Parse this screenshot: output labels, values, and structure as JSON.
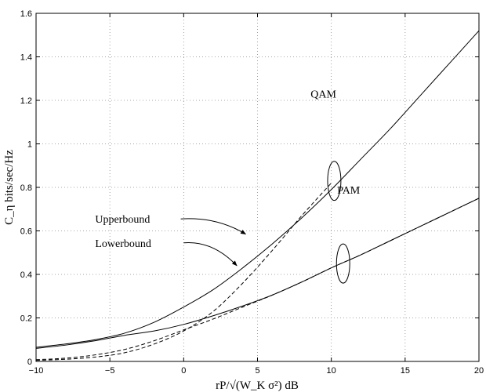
{
  "chart_data": {
    "type": "line",
    "xlabel": "rP/√(W_K σ²) dB",
    "ylabel": "C_η bits/sec/Hz",
    "xlim": [
      -10,
      20
    ],
    "ylim": [
      0,
      1.6
    ],
    "xticks": [
      "−10",
      "−5",
      "0",
      "5",
      "10",
      "15",
      "20"
    ],
    "yticks": [
      "0",
      "0.2",
      "0.4",
      "0.6",
      "0.8",
      "1",
      "1.2",
      "1.4",
      "1.6"
    ],
    "grid": true,
    "series": [
      {
        "name": "QAM Upperbound",
        "style": "solid",
        "x": [
          -10,
          -8,
          -6,
          -4,
          -2,
          0,
          2,
          4,
          6,
          8,
          10,
          12,
          14,
          16,
          18,
          20
        ],
        "y": [
          0.065,
          0.08,
          0.1,
          0.13,
          0.18,
          0.25,
          0.33,
          0.43,
          0.54,
          0.66,
          0.79,
          0.93,
          1.07,
          1.22,
          1.37,
          1.52
        ]
      },
      {
        "name": "QAM Lowerbound",
        "style": "dashed",
        "x": [
          -10,
          -8,
          -6,
          -4,
          -2,
          0,
          2,
          4,
          6,
          8,
          10
        ],
        "y": [
          0.005,
          0.01,
          0.02,
          0.04,
          0.08,
          0.14,
          0.23,
          0.36,
          0.51,
          0.67,
          0.82
        ]
      },
      {
        "name": "PAM Upperbound",
        "style": "solid",
        "x": [
          -10,
          -8,
          -6,
          -4,
          -2,
          0,
          2,
          4,
          6,
          8,
          10,
          12,
          14,
          16,
          18,
          20
        ],
        "y": [
          0.06,
          0.075,
          0.095,
          0.12,
          0.14,
          0.17,
          0.21,
          0.255,
          0.305,
          0.365,
          0.43,
          0.49,
          0.555,
          0.62,
          0.685,
          0.75
        ]
      },
      {
        "name": "PAM Lowerbound",
        "style": "dashed",
        "x": [
          -10,
          -8,
          -6,
          -4,
          -2,
          0,
          2,
          4,
          6,
          8,
          10,
          12,
          14,
          16,
          18,
          20
        ],
        "y": [
          0.008,
          0.015,
          0.03,
          0.055,
          0.095,
          0.145,
          0.195,
          0.25,
          0.305,
          0.365,
          0.43,
          0.49,
          0.555,
          0.62,
          0.685,
          0.75
        ]
      }
    ],
    "annotations": [
      {
        "text": "QAM",
        "x": 8.6,
        "y": 1.23,
        "anchor": "start",
        "ellipse": {
          "cx": 10.2,
          "cy": 0.83,
          "rx": 0.45,
          "ry": 0.09
        }
      },
      {
        "text": "PAM",
        "x": 10.4,
        "y": 0.79,
        "anchor": "start",
        "ellipse": {
          "cx": 10.8,
          "cy": 0.45,
          "rx": 0.45,
          "ry": 0.09
        }
      },
      {
        "text": "Upperbound",
        "x": -6.0,
        "y": 0.655,
        "anchor": "start",
        "arrow": {
          "from": [
            -0.2,
            0.655
          ],
          "to": [
            4.2,
            0.585
          ]
        }
      },
      {
        "text": "Lowerbound",
        "x": -6.0,
        "y": 0.545,
        "anchor": "start",
        "arrow": {
          "from": [
            0.0,
            0.545
          ],
          "to": [
            3.6,
            0.44
          ]
        }
      }
    ]
  }
}
